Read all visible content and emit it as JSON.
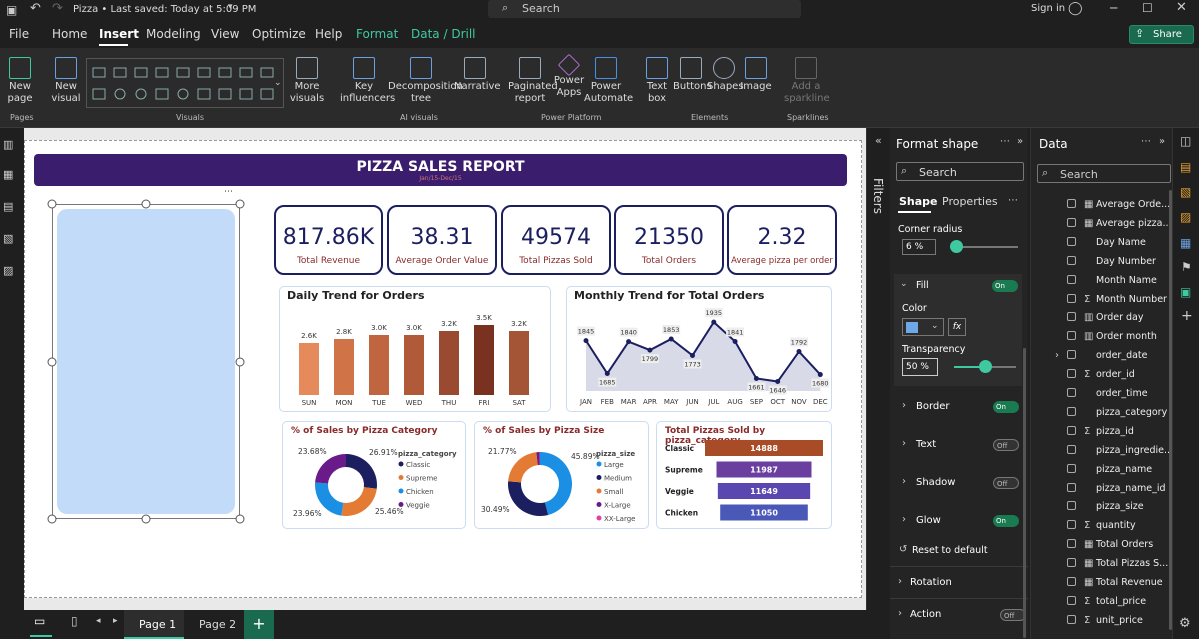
{
  "titlebar": {
    "doc": "Pizza • Last saved: Today at 5:09 PM",
    "search": "Search",
    "signin": "Sign in"
  },
  "menu": {
    "file": "File",
    "home": "Home",
    "insert": "Insert",
    "modeling": "Modeling",
    "view": "View",
    "optimize": "Optimize",
    "help": "Help",
    "format": "Format",
    "datadrill": "Data / Drill",
    "share": "Share"
  },
  "ribbon": {
    "newpage": "New page",
    "newvisual": "New visual",
    "morevisuals": "More visuals",
    "key": "Key influencers",
    "decomp": "Decomposition tree",
    "narrative": "Narrative",
    "paginated": "Paginated report",
    "powerapps": "Power Apps",
    "automate": "Power Automate",
    "textbox": "Text box",
    "buttons": "Buttons",
    "shapes": "Shapes",
    "image": "Image",
    "sparkline": "Add a sparkline",
    "groups": {
      "pages": "Pages",
      "visuals": "Visuals",
      "ai": "AI visuals",
      "platform": "Power Platform",
      "elements": "Elements",
      "sparklines": "Sparklines"
    }
  },
  "report": {
    "title": "PIZZA SALES REPORT",
    "subtitle": "Jan/15-Dec/15"
  },
  "kpis": [
    {
      "value": "817.86K",
      "label": "Total Revenue"
    },
    {
      "value": "38.31",
      "label": "Average Order Value"
    },
    {
      "value": "49574",
      "label": "Total Pizzas Sold"
    },
    {
      "value": "21350",
      "label": "Total Orders"
    },
    {
      "value": "2.32",
      "label": "Average pizza per order"
    }
  ],
  "chart_data": [
    {
      "type": "bar",
      "title": "Daily Trend for Orders",
      "categories": [
        "SUN",
        "MON",
        "TUE",
        "WED",
        "THU",
        "FRI",
        "SAT"
      ],
      "values": [
        2.6,
        2.8,
        3.0,
        3.0,
        3.2,
        3.5,
        3.2
      ],
      "labels": [
        "2.6K",
        "2.8K",
        "3.0K",
        "3.0K",
        "3.2K",
        "3.5K",
        "3.2K"
      ],
      "colors": [
        "#e58a5b",
        "#d07448",
        "#bf6540",
        "#b05a3a",
        "#9a4a30",
        "#7a3220",
        "#a35535"
      ]
    },
    {
      "type": "area",
      "title": "Monthly Trend for Total Orders",
      "categories": [
        "JAN",
        "FEB",
        "MAR",
        "APR",
        "MAY",
        "JUN",
        "JUL",
        "AUG",
        "SEP",
        "OCT",
        "NOV",
        "DEC"
      ],
      "values": [
        1845,
        1685,
        1840,
        1799,
        1853,
        1773,
        1935,
        1841,
        1661,
        1646,
        1792,
        1680
      ],
      "ylim": [
        1600,
        1960
      ]
    },
    {
      "type": "pie",
      "title": "% of Sales by Pizza Category",
      "legend_title": "pizza_category",
      "labels": [
        "Classic",
        "Supreme",
        "Chicken",
        "Veggie"
      ],
      "values": [
        26.91,
        25.46,
        23.96,
        23.68
      ],
      "pct_labels": [
        "26.91%",
        "25.46%",
        "23.96%",
        "23.68%"
      ],
      "colors": [
        "#1b1f5f",
        "#e37b35",
        "#1a8fe3",
        "#6a1b8a"
      ]
    },
    {
      "type": "pie",
      "title": "% of Sales by Pizza Size",
      "legend_title": "pizza_size",
      "labels": [
        "Large",
        "Medium",
        "Small",
        "X-Large",
        "XX-Large"
      ],
      "values": [
        45.89,
        30.49,
        21.77,
        1.72,
        0.12
      ],
      "pct_labels": [
        "45.89%",
        "30.49%",
        "21.77%"
      ],
      "colors": [
        "#1a8fe3",
        "#1b1f5f",
        "#e37b35",
        "#6a1b8a",
        "#e040a0"
      ]
    },
    {
      "type": "bar",
      "title": "Total Pizzas Sold by pizza_category",
      "categories": [
        "Classic",
        "Supreme",
        "Veggie",
        "Chicken"
      ],
      "values": [
        14888,
        11987,
        11649,
        11050
      ],
      "colors": [
        "#a84c28",
        "#6b3fa0",
        "#5a48b0",
        "#4a58b8"
      ]
    }
  ],
  "format": {
    "title": "Format shape",
    "search": "Search",
    "tab_shape": "Shape",
    "tab_props": "Properties",
    "corner": "Corner radius",
    "corner_val": "6 %",
    "fill": "Fill",
    "color": "Color",
    "transparency": "Transparency",
    "trans_val": "50 %",
    "border": "Border",
    "text": "Text",
    "shadow": "Shadow",
    "glow": "Glow",
    "reset": "Reset to default",
    "rotation": "Rotation",
    "action": "Action",
    "on": "On",
    "off": "Off",
    "fx": "fx"
  },
  "data": {
    "title": "Data",
    "search": "Search",
    "fields": [
      "Average Orde...",
      "Average pizza...",
      "Day Name",
      "Day Number",
      "Month Name",
      "Month Number",
      "Order day",
      "Order month",
      "order_date",
      "order_id",
      "order_time",
      "pizza_category",
      "pizza_id",
      "pizza_ingredie...",
      "pizza_name",
      "pizza_name_id",
      "pizza_size",
      "quantity",
      "Total Orders",
      "Total Pizzas S...",
      "Total Revenue",
      "total_price",
      "unit_price"
    ],
    "types": [
      "calc",
      "calc",
      "",
      "",
      "",
      "sum",
      "cal",
      "cal",
      "",
      "sum",
      "",
      "",
      "sum",
      "",
      "",
      "",
      "",
      "sum",
      "calc",
      "calc",
      "calc",
      "sum",
      "sum"
    ]
  },
  "filters": "Filters",
  "pages": {
    "p1": "Page 1",
    "p2": "Page 2",
    "add": "+"
  }
}
